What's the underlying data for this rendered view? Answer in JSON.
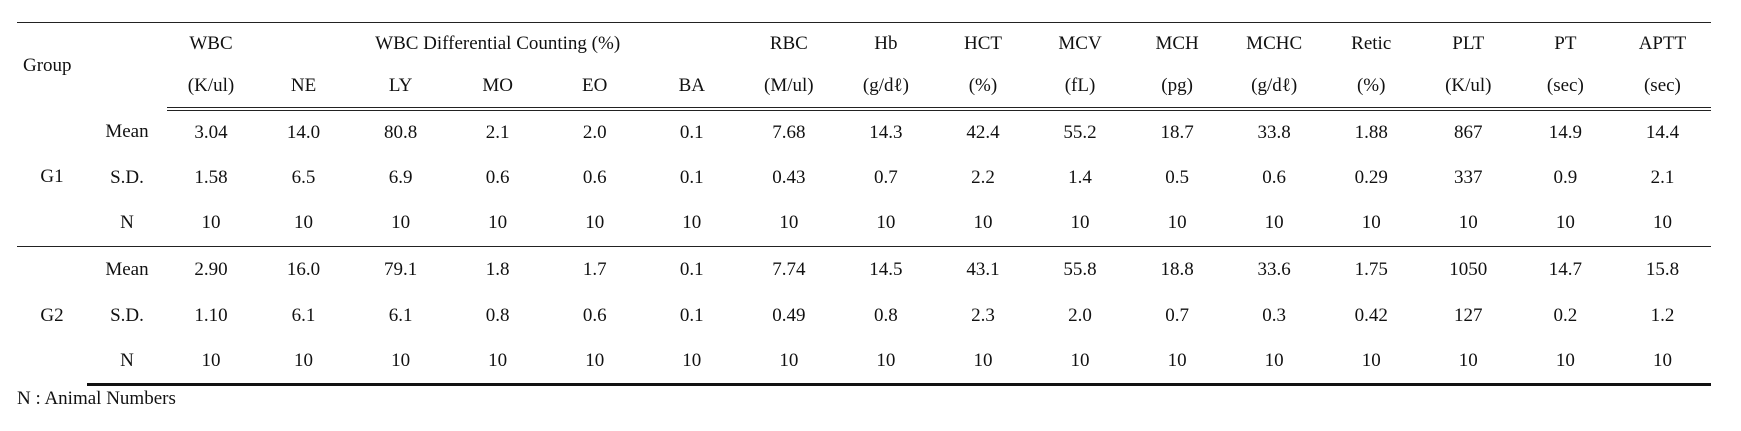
{
  "header": {
    "group": "Group",
    "row1": [
      "WBC",
      "WBC Differential Counting (%)",
      "RBC",
      "Hb",
      "HCT",
      "MCV",
      "MCH",
      "MCHC",
      "Retic",
      "PLT",
      "PT",
      "APTT"
    ],
    "row2": [
      "(K/ul)",
      "NE",
      "LY",
      "MO",
      "EO",
      "BA",
      "(M/ul)",
      "(g/dℓ)",
      "(%)",
      "(fL)",
      "(pg)",
      "(g/dℓ)",
      "(%)",
      "(K/ul)",
      "(sec)",
      "(sec)"
    ]
  },
  "groups": [
    {
      "name": "G1",
      "rows": [
        {
          "stat": "Mean",
          "values": [
            "3.04",
            "14.0",
            "80.8",
            "2.1",
            "2.0",
            "0.1",
            "7.68",
            "14.3",
            "42.4",
            "55.2",
            "18.7",
            "33.8",
            "1.88",
            "867",
            "14.9",
            "14.4"
          ]
        },
        {
          "stat": "S.D.",
          "values": [
            "1.58",
            "6.5",
            "6.9",
            "0.6",
            "0.6",
            "0.1",
            "0.43",
            "0.7",
            "2.2",
            "1.4",
            "0.5",
            "0.6",
            "0.29",
            "337",
            "0.9",
            "2.1"
          ]
        },
        {
          "stat": "N",
          "values": [
            "10",
            "10",
            "10",
            "10",
            "10",
            "10",
            "10",
            "10",
            "10",
            "10",
            "10",
            "10",
            "10",
            "10",
            "10",
            "10"
          ]
        }
      ]
    },
    {
      "name": "G2",
      "rows": [
        {
          "stat": "Mean",
          "values": [
            "2.90",
            "16.0",
            "79.1",
            "1.8",
            "1.7",
            "0.1",
            "7.74",
            "14.5",
            "43.1",
            "55.8",
            "18.8",
            "33.6",
            "1.75",
            "1050",
            "14.7",
            "15.8"
          ]
        },
        {
          "stat": "S.D.",
          "values": [
            "1.10",
            "6.1",
            "6.1",
            "0.8",
            "0.6",
            "0.1",
            "0.49",
            "0.8",
            "2.3",
            "2.0",
            "0.7",
            "0.3",
            "0.42",
            "127",
            "0.2",
            "1.2"
          ]
        },
        {
          "stat": "N",
          "values": [
            "10",
            "10",
            "10",
            "10",
            "10",
            "10",
            "10",
            "10",
            "10",
            "10",
            "10",
            "10",
            "10",
            "10",
            "10",
            "10"
          ]
        }
      ]
    }
  ],
  "footnote": "N : Animal Numbers"
}
